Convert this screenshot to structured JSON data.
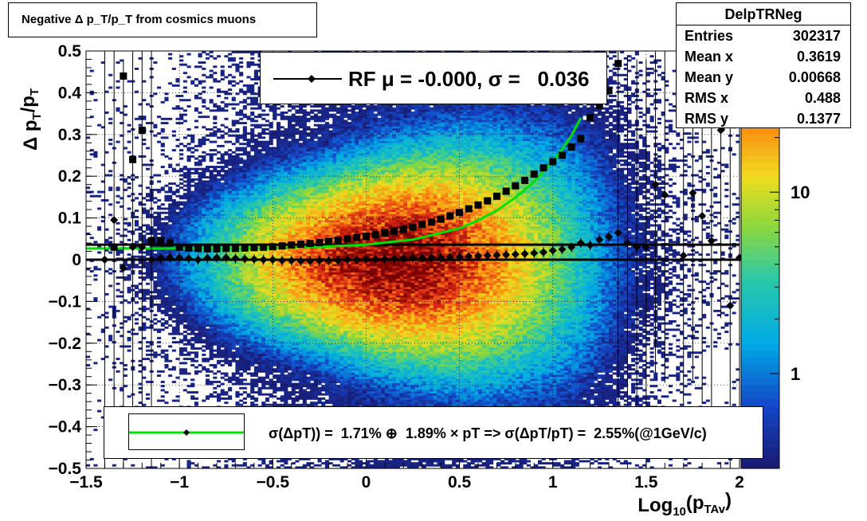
{
  "title": "Negative Δ p_T/p_T from cosmics muons",
  "stats": {
    "name": "DelpTRNeg",
    "rows": [
      {
        "key": "Entries",
        "value": "302317"
      },
      {
        "key": "Mean x",
        "value": "0.3619"
      },
      {
        "key": "Mean y",
        "value": "0.00668"
      },
      {
        "key": "RMS x",
        "value": "0.488"
      },
      {
        "key": "RMS y",
        "value": "0.1377"
      }
    ]
  },
  "legend_top": "RF μ = -0.000, σ =   0.036",
  "legend_bottom": "σ(ΔpT)) =  1.71% ⊕  1.89% × pT => σ(ΔpT/pT) =  2.55%(@1GeV/c)",
  "colors": {
    "fit_curve": "#00e000",
    "markers": "#000000"
  },
  "chart_data": {
    "type": "heatmap",
    "xlabel": "Log_10(p_TAv)",
    "ylabel": "Δ p_T/p_T",
    "xlim": [
      -1.5,
      2.0
    ],
    "ylim": [
      -0.5,
      0.5
    ],
    "x_ticks": [
      "−1.5",
      "−1",
      "−0.5",
      "0",
      "0.5",
      "1",
      "1.5",
      "2"
    ],
    "x_tick_values": [
      -1.5,
      -1,
      -0.5,
      0,
      0.5,
      1,
      1.5,
      2
    ],
    "y_ticks": [
      "−0.5",
      "−0.4",
      "−0.3",
      "−0.2",
      "−0.1",
      "0",
      "0.1",
      "0.2",
      "0.3",
      "0.4",
      "0.5"
    ],
    "y_tick_values": [
      -0.5,
      -0.4,
      -0.3,
      -0.2,
      -0.1,
      0,
      0.1,
      0.2,
      0.3,
      0.4,
      0.5
    ],
    "z_scale": "log",
    "z_ticks": [
      "1",
      "10"
    ],
    "z_tick_values": [
      1,
      10
    ],
    "z_range": [
      0.3,
      60
    ],
    "grid": true,
    "horizontal_lines": [
      0.036,
      0.0
    ],
    "sigma_points": {
      "x": [
        -1.35,
        -1.3,
        -1.25,
        -1.2,
        -1.15,
        -1.1,
        -1.05,
        -1.0,
        -0.95,
        -0.9,
        -0.85,
        -0.8,
        -0.75,
        -0.7,
        -0.65,
        -0.6,
        -0.55,
        -0.5,
        -0.45,
        -0.4,
        -0.35,
        -0.3,
        -0.25,
        -0.2,
        -0.15,
        -0.1,
        -0.05,
        0.0,
        0.05,
        0.1,
        0.15,
        0.2,
        0.25,
        0.3,
        0.35,
        0.4,
        0.45,
        0.5,
        0.55,
        0.6,
        0.65,
        0.7,
        0.75,
        0.8,
        0.85,
        0.9,
        0.95,
        1.0,
        1.05,
        1.1,
        1.15,
        1.2,
        1.25,
        1.3,
        1.35
      ],
      "y": [
        0.03,
        0.44,
        0.24,
        0.31,
        0.045,
        0.045,
        0.04,
        0.03,
        0.028,
        0.027,
        0.026,
        0.026,
        0.027,
        0.027,
        0.028,
        0.029,
        0.03,
        0.031,
        0.033,
        0.035,
        0.037,
        0.039,
        0.041,
        0.044,
        0.047,
        0.05,
        0.053,
        0.056,
        0.06,
        0.064,
        0.068,
        0.073,
        0.078,
        0.084,
        0.09,
        0.097,
        0.105,
        0.113,
        0.122,
        0.131,
        0.141,
        0.152,
        0.164,
        0.177,
        0.19,
        0.205,
        0.22,
        0.235,
        0.25,
        0.27,
        0.29,
        0.34,
        0.37,
        0.405,
        0.47
      ]
    },
    "mean_points": {
      "x": [
        -1.4,
        -1.35,
        -1.3,
        -1.25,
        -1.2,
        -1.15,
        -1.1,
        -1.05,
        -1.0,
        -0.95,
        -0.9,
        -0.85,
        -0.8,
        -0.75,
        -0.7,
        -0.65,
        -0.6,
        -0.55,
        -0.5,
        -0.45,
        -0.4,
        -0.35,
        -0.3,
        -0.25,
        -0.2,
        -0.15,
        -0.1,
        -0.05,
        0.0,
        0.05,
        0.1,
        0.15,
        0.2,
        0.25,
        0.3,
        0.35,
        0.4,
        0.45,
        0.5,
        0.55,
        0.6,
        0.65,
        0.7,
        0.75,
        0.8,
        0.85,
        0.9,
        0.95,
        1.0,
        1.05,
        1.1,
        1.15,
        1.2,
        1.25,
        1.3,
        1.35,
        1.4,
        1.45,
        1.5,
        1.55,
        1.6,
        1.7,
        1.75,
        1.8,
        1.85,
        1.9,
        1.95,
        2.0
      ],
      "y": [
        0.0,
        0.095,
        -0.02,
        0.03,
        0.03,
        0.0,
        0.003,
        0.005,
        0.005,
        0.003,
        0.0,
        0.004,
        0.005,
        0.005,
        0.003,
        0.002,
        0.001,
        0.0,
        0.0,
        -0.002,
        -0.002,
        -0.003,
        -0.003,
        -0.002,
        -0.002,
        -0.002,
        0.0,
        0.0,
        0.001,
        0.001,
        0.002,
        0.002,
        0.003,
        0.004,
        0.004,
        0.005,
        0.005,
        0.006,
        0.007,
        0.008,
        0.009,
        0.01,
        0.011,
        0.012,
        0.013,
        0.014,
        0.016,
        0.018,
        0.022,
        0.025,
        0.03,
        0.04,
        0.035,
        0.048,
        0.055,
        0.065,
        0.04,
        0.03,
        0.03,
        0.18,
        0.155,
        0.01,
        0.16,
        0.105,
        0.045,
        0.31,
        -0.11,
        0.005
      ]
    },
    "fit_curve": {
      "x": [
        -1.5,
        -1.25,
        -1.0,
        -0.75,
        -0.5,
        -0.25,
        0.0,
        0.25,
        0.5,
        0.6,
        0.7,
        0.8,
        0.9,
        1.0,
        1.05,
        1.1,
        1.15
      ],
      "y": [
        0.027,
        0.027,
        0.027,
        0.027,
        0.028,
        0.031,
        0.036,
        0.048,
        0.075,
        0.094,
        0.118,
        0.149,
        0.187,
        0.235,
        0.265,
        0.297,
        0.34
      ]
    }
  }
}
